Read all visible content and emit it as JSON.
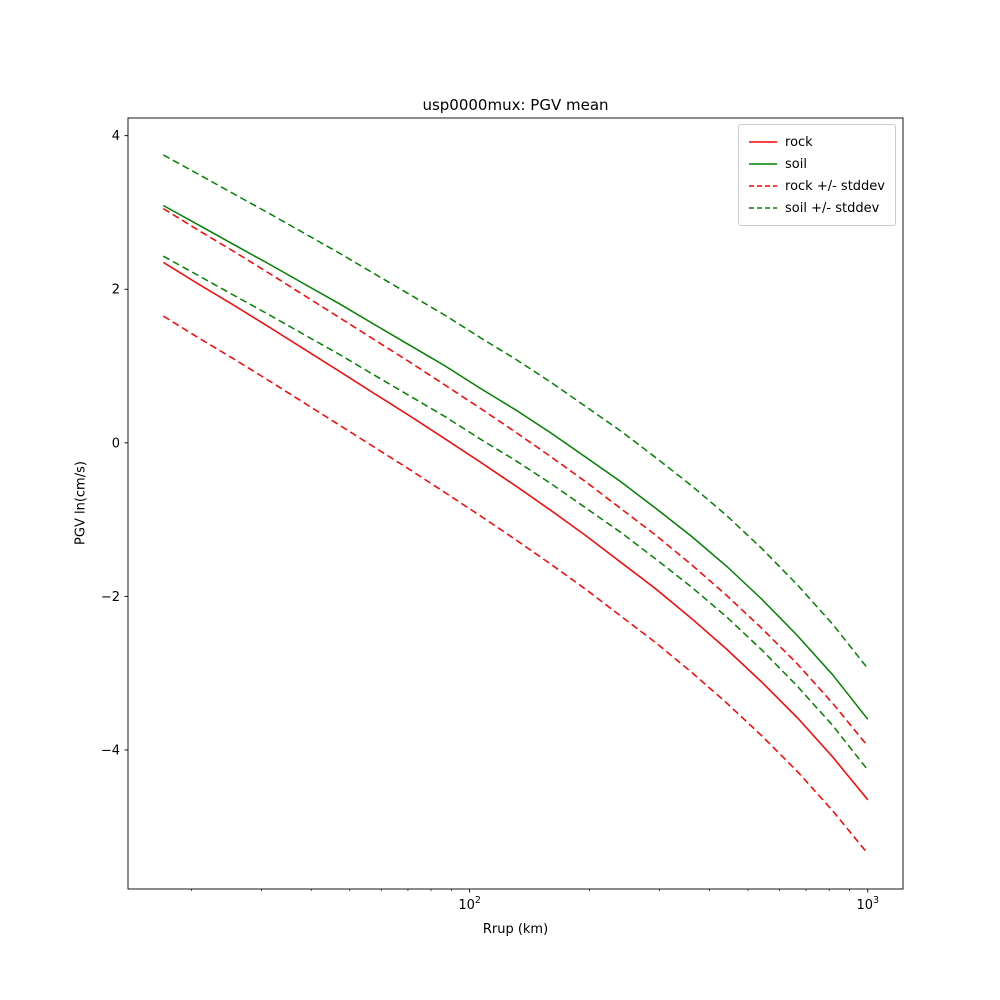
{
  "page": {
    "background": "#ffffff"
  },
  "chart_data": {
    "type": "line",
    "title": "usp0000mux: PGV mean",
    "xlabel": "Rrup (km)",
    "ylabel": "PGV ln(cm/s)",
    "x_scale": "log",
    "grid": false,
    "legend_position": "top-right",
    "xlim_log10": [
      1.1419,
      3.0885
    ],
    "ylim": [
      -5.81,
      4.23
    ],
    "y_ticks": [
      4,
      2,
      0,
      -2,
      -4
    ],
    "x_major_ticks": [
      {
        "value": 100,
        "log10": 2,
        "base": "10",
        "exp": "2"
      },
      {
        "value": 1000,
        "log10": 3,
        "base": "10",
        "exp": "3"
      }
    ],
    "x_minor_ticks_log10": [
      1.301,
      1.477,
      1.602,
      1.699,
      1.778,
      1.845,
      1.903,
      1.954,
      2.301,
      2.477,
      2.602,
      2.699,
      2.778,
      2.845,
      2.903,
      2.954
    ],
    "x": [
      17.0,
      20.8,
      25.6,
      31.3,
      38.4,
      47.1,
      57.7,
      70.8,
      86.8,
      106.3,
      130.4,
      159.9,
      196.0,
      240.3,
      294.6,
      361.2,
      442.8,
      542.9,
      665.5,
      816.0,
      1000.0
    ],
    "series": [
      {
        "name": "rock",
        "color": "#ff0000",
        "style": "solid",
        "values": [
          2.35,
          2.07,
          1.79,
          1.51,
          1.22,
          0.93,
          0.64,
          0.35,
          0.05,
          -0.25,
          -0.56,
          -0.88,
          -1.21,
          -1.56,
          -1.91,
          -2.29,
          -2.69,
          -3.12,
          -3.58,
          -4.09,
          -4.65
        ]
      },
      {
        "name": "soil",
        "color": "#008000",
        "style": "solid",
        "values": [
          3.09,
          2.84,
          2.58,
          2.33,
          2.07,
          1.81,
          1.54,
          1.27,
          1.0,
          0.71,
          0.43,
          0.13,
          -0.19,
          -0.51,
          -0.86,
          -1.22,
          -1.61,
          -2.04,
          -2.51,
          -3.02,
          -3.6
        ]
      },
      {
        "name": "rock +/- stddev",
        "color": "#ff0000",
        "style": "dashed",
        "stddev": 0.7,
        "values_upper": [
          3.05,
          2.77,
          2.49,
          2.21,
          1.92,
          1.63,
          1.34,
          1.05,
          0.75,
          0.45,
          0.14,
          -0.18,
          -0.51,
          -0.86,
          -1.21,
          -1.59,
          -1.99,
          -2.42,
          -2.88,
          -3.39,
          -3.95
        ],
        "values_lower": [
          1.65,
          1.37,
          1.09,
          0.81,
          0.52,
          0.23,
          -0.06,
          -0.35,
          -0.65,
          -0.95,
          -1.26,
          -1.58,
          -1.91,
          -2.26,
          -2.61,
          -2.99,
          -3.39,
          -3.82,
          -4.28,
          -4.79,
          -5.35
        ]
      },
      {
        "name": "soil +/- stddev",
        "color": "#008000",
        "style": "dashed",
        "stddev": 0.66,
        "values_upper": [
          3.75,
          3.5,
          3.24,
          2.99,
          2.73,
          2.47,
          2.2,
          1.93,
          1.66,
          1.37,
          1.09,
          0.79,
          0.47,
          0.15,
          -0.2,
          -0.56,
          -0.95,
          -1.38,
          -1.85,
          -2.36,
          -2.94
        ],
        "values_lower": [
          2.43,
          2.18,
          1.92,
          1.67,
          1.41,
          1.15,
          0.88,
          0.61,
          0.34,
          0.05,
          -0.23,
          -0.53,
          -0.85,
          -1.17,
          -1.52,
          -1.88,
          -2.27,
          -2.7,
          -3.17,
          -3.68,
          -4.26
        ]
      }
    ],
    "legend": {
      "entries": [
        {
          "label": "rock",
          "color": "#ff0000",
          "style": "solid"
        },
        {
          "label": "soil",
          "color": "#008000",
          "style": "solid"
        },
        {
          "label": "rock +/- stddev",
          "color": "#ff0000",
          "style": "dashed"
        },
        {
          "label": "soil +/- stddev",
          "color": "#008000",
          "style": "dashed"
        }
      ]
    }
  }
}
